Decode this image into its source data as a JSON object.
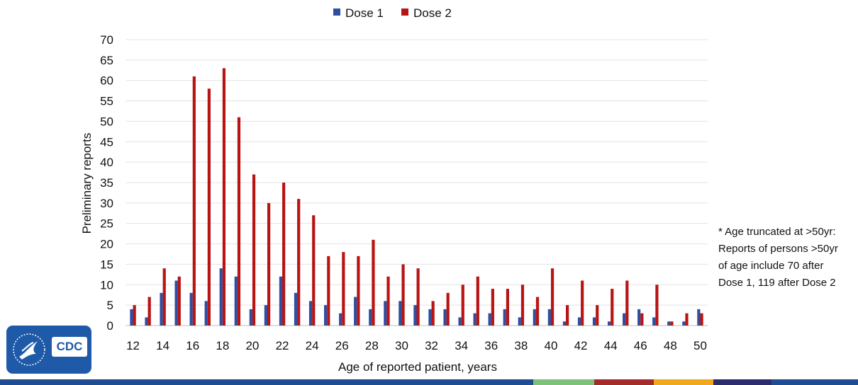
{
  "chart_data": {
    "type": "bar",
    "xlabel": "Age of reported patient, years",
    "ylabel": "Preliminary reports",
    "ylim": [
      0,
      70
    ],
    "yticks": [
      0,
      5,
      10,
      15,
      20,
      25,
      30,
      35,
      40,
      45,
      50,
      55,
      60,
      65,
      70
    ],
    "categories": [
      12,
      13,
      14,
      15,
      16,
      17,
      18,
      19,
      20,
      21,
      22,
      23,
      24,
      25,
      26,
      27,
      28,
      29,
      30,
      31,
      32,
      33,
      34,
      35,
      36,
      37,
      38,
      39,
      40,
      41,
      42,
      43,
      44,
      45,
      46,
      47,
      48,
      49,
      50
    ],
    "x_tick_labels": [
      "12",
      "14",
      "16",
      "18",
      "20",
      "22",
      "24",
      "26",
      "28",
      "30",
      "32",
      "34",
      "36",
      "38",
      "40",
      "42",
      "44",
      "46",
      "48",
      "50"
    ],
    "grid": true,
    "legend_position": "top-center",
    "series": [
      {
        "name": "Dose 1",
        "color": "#2e4fa0",
        "values": [
          4,
          2,
          8,
          11,
          8,
          6,
          14,
          12,
          4,
          5,
          12,
          8,
          6,
          5,
          3,
          7,
          4,
          6,
          6,
          5,
          4,
          4,
          2,
          3,
          3,
          4,
          2,
          4,
          4,
          1,
          2,
          2,
          1,
          3,
          4,
          2,
          1,
          1,
          4
        ]
      },
      {
        "name": "Dose 2",
        "color": "#b81414",
        "values": [
          5,
          7,
          14,
          12,
          61,
          58,
          63,
          51,
          37,
          30,
          35,
          31,
          27,
          17,
          18,
          17,
          21,
          12,
          15,
          14,
          6,
          8,
          10,
          12,
          9,
          9,
          10,
          7,
          14,
          5,
          11,
          5,
          9,
          11,
          3,
          10,
          1,
          3,
          3
        ]
      }
    ]
  },
  "note": {
    "lines": [
      "* Age truncated at >50yr:",
      "Reports of persons >50yr",
      "of age include 70 after",
      "Dose 1, 119 after Dose 2"
    ]
  },
  "logo": {
    "text": "CDC",
    "color": "#1e5aa8"
  },
  "footer_colors": [
    "#1e4d94",
    "#7fc07a",
    "#a52a2a",
    "#f2a81d",
    "#2c2c6e",
    "#1e4d94"
  ]
}
